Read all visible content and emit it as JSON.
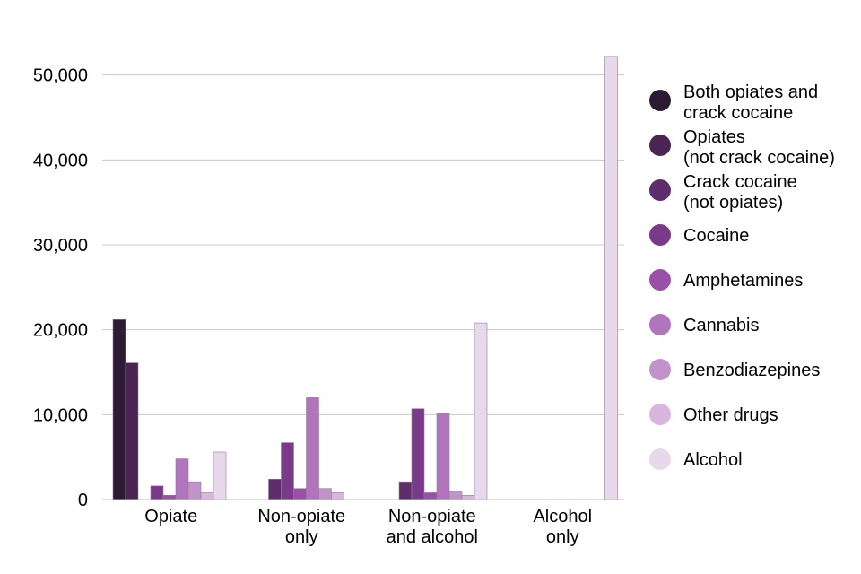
{
  "chart_data": {
    "type": "bar",
    "categories": [
      [
        "Opiate"
      ],
      [
        "Non-opiate",
        "only"
      ],
      [
        "Non-opiate",
        "and alcohol"
      ],
      [
        "Alcohol",
        "only"
      ]
    ],
    "series": [
      {
        "name": [
          "Both opiates and",
          "crack cocaine"
        ],
        "color": "#2d1a33",
        "values": [
          21200,
          0,
          0,
          0
        ]
      },
      {
        "name": [
          "Opiates",
          "(not crack cocaine)"
        ],
        "color": "#4a2553",
        "values": [
          16100,
          0,
          0,
          0
        ]
      },
      {
        "name": [
          "Crack cocaine",
          "(not opiates)"
        ],
        "color": "#5e2d6b",
        "values": [
          0,
          2400,
          2100,
          0
        ]
      },
      {
        "name": [
          "Cocaine"
        ],
        "color": "#7a3a8a",
        "values": [
          1600,
          6700,
          10700,
          0
        ]
      },
      {
        "name": [
          "Amphetamines"
        ],
        "color": "#9a4fa8",
        "values": [
          500,
          1300,
          800,
          0
        ]
      },
      {
        "name": [
          "Cannabis"
        ],
        "color": "#b075bd",
        "values": [
          4800,
          12000,
          10200,
          0
        ]
      },
      {
        "name": [
          "Benzodiazepines"
        ],
        "color": "#c293cb",
        "values": [
          2100,
          1300,
          900,
          0
        ]
      },
      {
        "name": [
          "Other drugs"
        ],
        "color": "#d8b6dd",
        "values": [
          800,
          800,
          500,
          0
        ]
      },
      {
        "name": [
          "Alcohol"
        ],
        "color": "#e8d8ec",
        "values": [
          5600,
          0,
          20800,
          52200
        ]
      }
    ],
    "yticks": [
      0,
      10000,
      20000,
      30000,
      40000,
      50000
    ],
    "ytick_labels": [
      "0",
      "10,000",
      "20,000",
      "30,000",
      "40,000",
      "50,000"
    ],
    "ylim": [
      0,
      52200
    ],
    "grid": true,
    "legend_position": "right",
    "gridline_color": "#c8c8c8",
    "axis_color": "#bfbfbf",
    "bar_outline_color": "#8f7f93"
  }
}
